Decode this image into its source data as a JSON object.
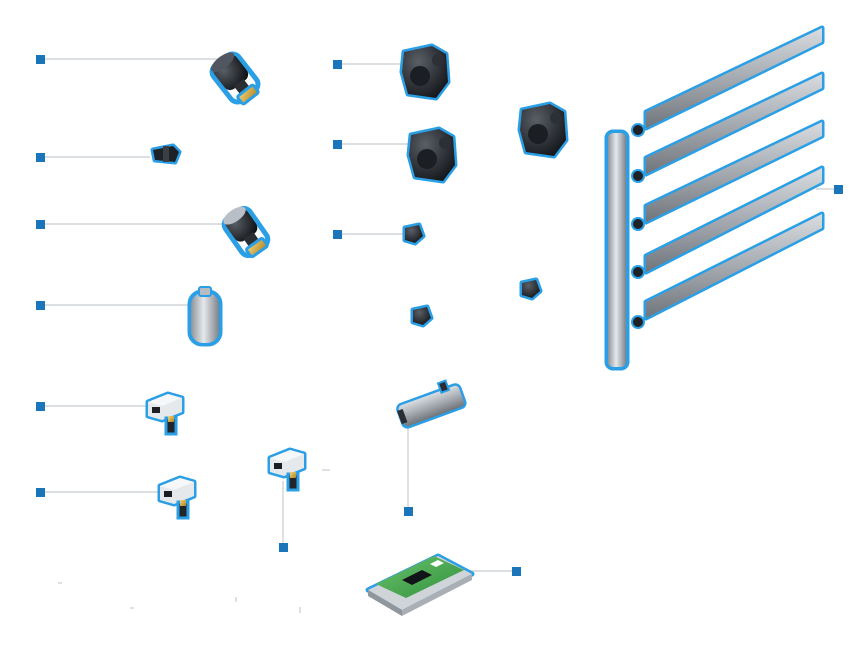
{
  "diagram": {
    "accent_color": "#1b75bb",
    "outline_color": "#2b9fe6",
    "leader_color": "#c8ccd0",
    "components": [
      {
        "id": "valve-actuator-large",
        "icon": "valve-actuator-icon"
      },
      {
        "id": "tee-fitting",
        "icon": "tee-fitting-icon"
      },
      {
        "id": "valve-actuator-medium",
        "icon": "valve-actuator-icon"
      },
      {
        "id": "expansion-vessel",
        "icon": "cylinder-tank-icon"
      },
      {
        "id": "actuator-box-1",
        "icon": "actuator-box-icon"
      },
      {
        "id": "actuator-box-2",
        "icon": "actuator-box-icon"
      },
      {
        "id": "actuator-box-3",
        "icon": "actuator-box-icon"
      },
      {
        "id": "fitting-large-1",
        "icon": "black-fitting-icon"
      },
      {
        "id": "fitting-large-2",
        "icon": "black-fitting-icon"
      },
      {
        "id": "fitting-large-3",
        "icon": "black-fitting-icon"
      },
      {
        "id": "cap-small-1",
        "icon": "black-cap-icon"
      },
      {
        "id": "cap-small-2",
        "icon": "black-cap-icon"
      },
      {
        "id": "cap-small-3",
        "icon": "black-cap-icon"
      },
      {
        "id": "manifold-distributor",
        "icon": "manifold-icon"
      },
      {
        "id": "linear-actuator",
        "icon": "linear-actuator-icon"
      },
      {
        "id": "controller-board",
        "icon": "controller-board-icon"
      }
    ]
  }
}
